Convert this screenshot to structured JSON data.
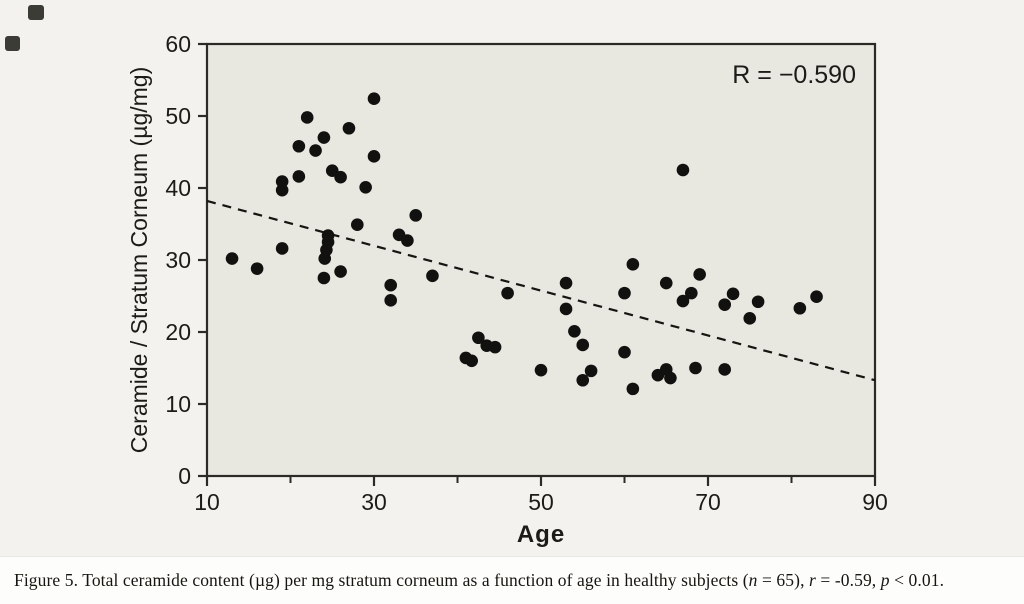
{
  "figure": {
    "caption_segments": [
      {
        "text": "Figure 5. Total ceramide content (µg) per mg stratum corneum as a function of age in healthy subjects (",
        "italic": false
      },
      {
        "text": "n",
        "italic": true
      },
      {
        "text": " = 65), ",
        "italic": false
      },
      {
        "text": "r",
        "italic": true
      },
      {
        "text": " = -0.59, ",
        "italic": false
      },
      {
        "text": "p",
        "italic": true
      },
      {
        "text": " < 0.01.",
        "italic": false
      }
    ]
  },
  "chart_data": {
    "type": "scatter",
    "title": "",
    "xlabel": "Age",
    "ylabel": "Ceramide / Stratum Corneum (µg/mg)",
    "annotation": "R = −0.590",
    "xlim": [
      10,
      90
    ],
    "ylim": [
      0,
      60
    ],
    "x_major_ticks": [
      10,
      30,
      50,
      70,
      90
    ],
    "x_minor_ticks": [
      20,
      40,
      60,
      80
    ],
    "y_ticks": [
      0,
      10,
      20,
      30,
      40,
      50,
      60
    ],
    "grid": false,
    "legend": "none",
    "n_reported": 65,
    "trend_line": {
      "style": "dashed",
      "x": [
        10,
        90
      ],
      "y": [
        38.2,
        13.3
      ]
    },
    "points": [
      [
        13,
        30.2
      ],
      [
        16,
        28.8
      ],
      [
        19,
        31.6
      ],
      [
        19,
        39.7
      ],
      [
        19,
        40.9
      ],
      [
        21,
        41.6
      ],
      [
        21,
        45.8
      ],
      [
        22,
        49.8
      ],
      [
        23,
        45.2
      ],
      [
        24,
        47.0
      ],
      [
        24,
        27.5
      ],
      [
        24.1,
        30.2
      ],
      [
        24.3,
        31.4
      ],
      [
        24.5,
        32.5
      ],
      [
        24.5,
        33.4
      ],
      [
        25,
        42.4
      ],
      [
        26,
        41.5
      ],
      [
        26,
        28.4
      ],
      [
        27,
        48.3
      ],
      [
        28,
        34.9
      ],
      [
        29,
        40.1
      ],
      [
        30,
        52.4
      ],
      [
        30,
        44.4
      ],
      [
        32,
        26.5
      ],
      [
        32,
        24.4
      ],
      [
        33,
        33.5
      ],
      [
        34,
        32.7
      ],
      [
        35,
        36.2
      ],
      [
        37,
        27.8
      ],
      [
        41,
        16.4
      ],
      [
        41.7,
        16.0
      ],
      [
        42.5,
        19.2
      ],
      [
        43.5,
        18.1
      ],
      [
        44.5,
        17.9
      ],
      [
        46,
        25.4
      ],
      [
        50,
        14.7
      ],
      [
        53,
        26.8
      ],
      [
        53,
        23.2
      ],
      [
        54,
        20.1
      ],
      [
        55,
        18.2
      ],
      [
        55,
        13.3
      ],
      [
        56,
        14.6
      ],
      [
        60,
        25.4
      ],
      [
        60,
        17.2
      ],
      [
        61,
        29.4
      ],
      [
        61,
        12.1
      ],
      [
        64,
        14.0
      ],
      [
        65,
        14.8
      ],
      [
        65.5,
        13.6
      ],
      [
        65,
        26.8
      ],
      [
        67,
        42.5
      ],
      [
        67,
        24.3
      ],
      [
        68,
        25.4
      ],
      [
        68.5,
        15.0
      ],
      [
        69,
        28.0
      ],
      [
        72,
        14.8
      ],
      [
        72,
        23.8
      ],
      [
        73,
        25.3
      ],
      [
        75,
        21.9
      ],
      [
        76,
        24.2
      ],
      [
        81,
        23.3
      ],
      [
        83,
        24.9
      ]
    ],
    "colors": {
      "point": "#111110",
      "axis": "#2b2a26",
      "plot_bg": "#e8e7e0",
      "page_bg": "#f3f2ee",
      "caption_bg": "#fdfdfb",
      "text": "#1c1b18"
    }
  }
}
